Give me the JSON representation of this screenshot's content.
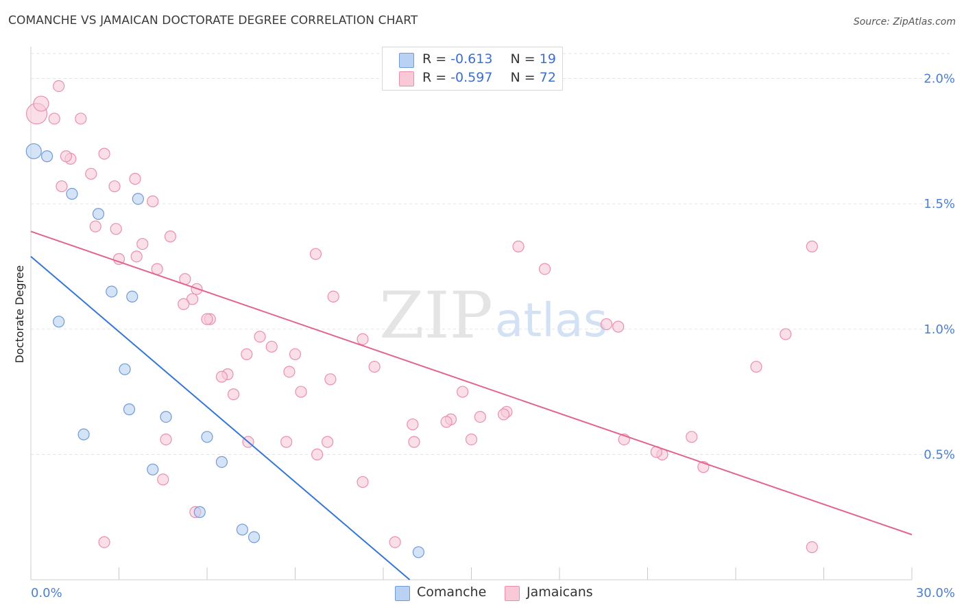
{
  "header": {
    "title": "COMANCHE VS JAMAICAN DOCTORATE DEGREE CORRELATION CHART",
    "source": "Source: ZipAtlas.com"
  },
  "watermark": {
    "zip": "ZIP",
    "atlas": "atlas"
  },
  "legend": {
    "comanche": {
      "r_label": "R = ",
      "r_value": "-0.613",
      "n_label": "N = ",
      "n_value": "19"
    },
    "jamaicans": {
      "r_label": "R = ",
      "r_value": "-0.597",
      "n_label": "N = ",
      "n_value": "72"
    }
  },
  "bottom_legend": {
    "comanche": "Comanche",
    "jamaicans": "Jamaicans"
  },
  "colors": {
    "comanche_fill": "#b9d1f2",
    "comanche_stroke": "#6f9ad8",
    "comanche_line": "#3476d3",
    "jamaicans_fill": "#f9c9d8",
    "jamaicans_stroke": "#e98fab",
    "jamaicans_line": "#e0648f",
    "tick_label": "#4a7fd4",
    "grid": "#e3e3e3"
  },
  "chart_data": {
    "type": "scatter",
    "title": "COMANCHE VS JAMAICAN DOCTORATE DEGREE CORRELATION CHART",
    "xlabel": "",
    "ylabel": "Doctorate Degree",
    "xlim": [
      0,
      30
    ],
    "ylim": [
      0,
      2.1
    ],
    "x_tick_labels": [
      "0.0%",
      "30.0%"
    ],
    "y_ticks": [
      0.5,
      1.0,
      1.5,
      2.0
    ],
    "y_tick_labels": [
      "0.5%",
      "1.0%",
      "1.5%",
      "2.0%"
    ],
    "grid": true,
    "legend_position": "top-center",
    "series": [
      {
        "name": "Comanche",
        "x": [
          0.1,
          0.55,
          1.4,
          2.3,
          2.75,
          3.45,
          3.65,
          0.95,
          3.2,
          1.8,
          3.35,
          4.6,
          6.0,
          4.15,
          6.5,
          5.75,
          7.6,
          7.2,
          13.2
        ],
        "y": [
          1.71,
          1.69,
          1.54,
          1.46,
          1.15,
          1.13,
          1.52,
          1.03,
          0.84,
          0.58,
          0.68,
          0.65,
          0.57,
          0.44,
          0.47,
          0.27,
          0.17,
          0.2,
          0.11
        ],
        "trend": {
          "x": [
            0,
            12.9
          ],
          "y": [
            1.29,
            0.0
          ]
        }
      },
      {
        "name": "Jamaicans",
        "x": [
          0.2,
          0.35,
          0.8,
          0.95,
          1.7,
          1.35,
          2.5,
          1.2,
          1.05,
          2.05,
          2.85,
          3.55,
          4.15,
          4.75,
          2.2,
          2.9,
          3.0,
          3.8,
          3.6,
          4.3,
          5.25,
          5.65,
          5.5,
          5.2,
          6.1,
          6.0,
          7.8,
          9.7,
          10.3,
          8.2,
          9.0,
          7.35,
          6.7,
          6.5,
          6.9,
          8.8,
          9.2,
          10.2,
          11.3,
          11.7,
          13.0,
          14.3,
          14.15,
          13.05,
          14.7,
          15.3,
          16.2,
          16.6,
          17.5,
          19.6,
          20.2,
          21.5,
          22.5,
          22.9,
          24.7,
          25.7,
          26.6,
          4.5,
          2.5,
          5.6,
          4.6,
          7.4,
          8.7,
          9.75,
          10.1,
          11.3,
          12.4,
          15.0,
          16.1,
          20.0,
          21.3,
          26.6
        ],
        "y": [
          1.86,
          1.9,
          1.84,
          1.97,
          1.84,
          1.68,
          1.7,
          1.69,
          1.57,
          1.62,
          1.57,
          1.6,
          1.51,
          1.37,
          1.41,
          1.4,
          1.28,
          1.34,
          1.29,
          1.24,
          1.2,
          1.16,
          1.12,
          1.1,
          1.04,
          1.04,
          0.97,
          1.3,
          1.13,
          0.93,
          0.9,
          0.9,
          0.82,
          0.81,
          0.74,
          0.83,
          0.75,
          0.8,
          0.96,
          0.85,
          0.62,
          0.64,
          0.63,
          0.55,
          0.75,
          0.65,
          0.67,
          1.33,
          1.24,
          1.02,
          0.56,
          0.5,
          0.57,
          0.45,
          0.85,
          0.98,
          1.33,
          0.4,
          0.15,
          0.27,
          0.56,
          0.55,
          0.55,
          0.5,
          0.55,
          0.39,
          0.15,
          0.56,
          0.66,
          1.01,
          0.51,
          0.13
        ],
        "trend": {
          "x": [
            0,
            30
          ],
          "y": [
            1.39,
            0.18
          ]
        }
      }
    ]
  }
}
